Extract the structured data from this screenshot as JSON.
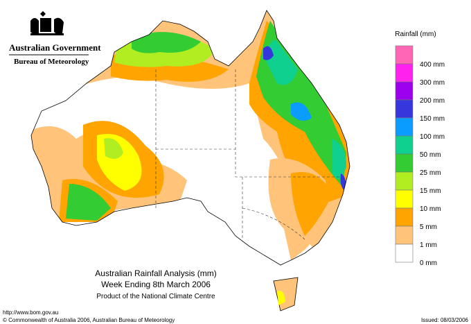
{
  "header": {
    "government": "Australian Government",
    "bureau": "Bureau of Meteorology"
  },
  "legend": {
    "title": "Rainfall (mm)",
    "items": [
      {
        "label": "400 mm",
        "color": "#ff66b3"
      },
      {
        "label": "300 mm",
        "color": "#ff22ee"
      },
      {
        "label": "200 mm",
        "color": "#9a00ee"
      },
      {
        "label": "150 mm",
        "color": "#3636dd"
      },
      {
        "label": "100 mm",
        "color": "#0a9cff"
      },
      {
        "label": "50 mm",
        "color": "#10d090"
      },
      {
        "label": "25 mm",
        "color": "#33cc33"
      },
      {
        "label": "15 mm",
        "color": "#b0ee22"
      },
      {
        "label": "10 mm",
        "color": "#ffff00"
      },
      {
        "label": "5 mm",
        "color": "#ffa400"
      },
      {
        "label": "1 mm",
        "color": "#ffc37a"
      },
      {
        "label": "0 mm",
        "color": "#ffffff"
      }
    ]
  },
  "map_title": {
    "line1": "Australian Rainfall Analysis (mm)",
    "line2": "Week Ending 8th March 2006",
    "line3": "Product of the National Climate Centre"
  },
  "footer": {
    "url": "http://www.bom.gov.au",
    "copyright": "© Commonwealth of Australia 2006, Australian Bureau of Meteorology",
    "issued": "Issued: 08/03/2006"
  }
}
